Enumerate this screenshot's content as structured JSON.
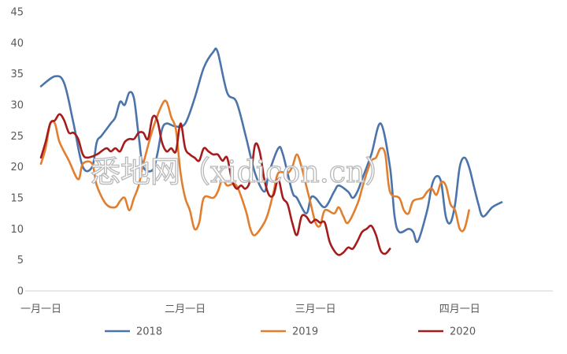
{
  "chart_data": {
    "type": "line",
    "title": "",
    "xlabel": "",
    "ylabel": "",
    "ylim": [
      0,
      45
    ],
    "yticks": [
      0,
      5,
      10,
      15,
      20,
      25,
      30,
      35,
      40,
      45
    ],
    "x_range": [
      0,
      110
    ],
    "xticks": [
      {
        "x": 0,
        "label": "一月一日"
      },
      {
        "x": 31,
        "label": "二月一日"
      },
      {
        "x": 59,
        "label": "三月一日"
      },
      {
        "x": 90,
        "label": "四月一日"
      }
    ],
    "grid": false,
    "legend": "bottom",
    "series": [
      {
        "name": "2018",
        "color": "#4a74aa",
        "points": [
          [
            0,
            33
          ],
          [
            3,
            34.6
          ],
          [
            5,
            33.5
          ],
          [
            7,
            27
          ],
          [
            9,
            20
          ],
          [
            11,
            20
          ],
          [
            12,
            24
          ],
          [
            13,
            25
          ],
          [
            15,
            27
          ],
          [
            16,
            28
          ],
          [
            17,
            30.5
          ],
          [
            18,
            30
          ],
          [
            19,
            32
          ],
          [
            20,
            31
          ],
          [
            21,
            25
          ],
          [
            22,
            20
          ],
          [
            24,
            19.5
          ],
          [
            25,
            22
          ],
          [
            26,
            26
          ],
          [
            27,
            27
          ],
          [
            29,
            26.5
          ],
          [
            31,
            27
          ],
          [
            33,
            31
          ],
          [
            35,
            36
          ],
          [
            37,
            38.5
          ],
          [
            38,
            38.5
          ],
          [
            40,
            32
          ],
          [
            42,
            30.5
          ],
          [
            44,
            25
          ],
          [
            46,
            19
          ],
          [
            48,
            16
          ],
          [
            49,
            19
          ],
          [
            51,
            23
          ],
          [
            52,
            22
          ],
          [
            54,
            16
          ],
          [
            55,
            15
          ],
          [
            57,
            12.5
          ],
          [
            58,
            15
          ],
          [
            59,
            15
          ],
          [
            61,
            13.5
          ],
          [
            63,
            16
          ],
          [
            64,
            17
          ],
          [
            66,
            16
          ],
          [
            67,
            15
          ],
          [
            68,
            16
          ],
          [
            69,
            18
          ],
          [
            71,
            22
          ],
          [
            73,
            27
          ],
          [
            75,
            20
          ],
          [
            76,
            12
          ],
          [
            77,
            9.5
          ],
          [
            79,
            10
          ],
          [
            80,
            9.5
          ],
          [
            81,
            8
          ],
          [
            83,
            13
          ],
          [
            84,
            17
          ],
          [
            85,
            18.5
          ],
          [
            86,
            17.5
          ],
          [
            87,
            12
          ],
          [
            88,
            11
          ],
          [
            89,
            14
          ],
          [
            90,
            20
          ],
          [
            91,
            21.5
          ],
          [
            92,
            20
          ],
          [
            93,
            17
          ],
          [
            94,
            14
          ],
          [
            95,
            12
          ],
          [
            97,
            13.5
          ],
          [
            99,
            14.3
          ]
        ]
      },
      {
        "name": "2019",
        "color": "#e27f2f",
        "points": [
          [
            0,
            20.5
          ],
          [
            1,
            23
          ],
          [
            2,
            27
          ],
          [
            3,
            27
          ],
          [
            4,
            24
          ],
          [
            6,
            21
          ],
          [
            8,
            18
          ],
          [
            9,
            20.5
          ],
          [
            11,
            20.5
          ],
          [
            12,
            17
          ],
          [
            14,
            14
          ],
          [
            16,
            13.5
          ],
          [
            17,
            14.5
          ],
          [
            18,
            15
          ],
          [
            19,
            13
          ],
          [
            20,
            15
          ],
          [
            21,
            17
          ],
          [
            22,
            20.5
          ],
          [
            24,
            26
          ],
          [
            26,
            30
          ],
          [
            27,
            30.5
          ],
          [
            28,
            28
          ],
          [
            29,
            26
          ],
          [
            30,
            19
          ],
          [
            31,
            15
          ],
          [
            32,
            13
          ],
          [
            33,
            10
          ],
          [
            34,
            11
          ],
          [
            35,
            15
          ],
          [
            37,
            15
          ],
          [
            38,
            16
          ],
          [
            39,
            18
          ],
          [
            40,
            17
          ],
          [
            42,
            17
          ],
          [
            44,
            13
          ],
          [
            45,
            10
          ],
          [
            46,
            9
          ],
          [
            48,
            11
          ],
          [
            49,
            13
          ],
          [
            50,
            16
          ],
          [
            51,
            19
          ],
          [
            53,
            19
          ],
          [
            54,
            20
          ],
          [
            55,
            22
          ],
          [
            56,
            20
          ],
          [
            57,
            17
          ],
          [
            58,
            14
          ],
          [
            59,
            11
          ],
          [
            60,
            10.5
          ],
          [
            61,
            13
          ],
          [
            63,
            12.5
          ],
          [
            64,
            13.5
          ],
          [
            65,
            12
          ],
          [
            66,
            11
          ],
          [
            68,
            14
          ],
          [
            69,
            16.5
          ],
          [
            70,
            19
          ],
          [
            71,
            21
          ],
          [
            72,
            21.5
          ],
          [
            73,
            23
          ],
          [
            74,
            22
          ],
          [
            75,
            16
          ],
          [
            77,
            15
          ],
          [
            78,
            13
          ],
          [
            79,
            12.5
          ],
          [
            80,
            14.5
          ],
          [
            82,
            15
          ],
          [
            83,
            16
          ],
          [
            84,
            16.5
          ],
          [
            85,
            15.5
          ],
          [
            86,
            17.5
          ],
          [
            87,
            17
          ],
          [
            88,
            14
          ],
          [
            89,
            13
          ],
          [
            90,
            10
          ],
          [
            91,
            10
          ],
          [
            92,
            13
          ]
        ]
      },
      {
        "name": "2020",
        "color": "#a51c1c",
        "points": [
          [
            0,
            21.5
          ],
          [
            1,
            24
          ],
          [
            2,
            27
          ],
          [
            3,
            27.5
          ],
          [
            4,
            28.5
          ],
          [
            5,
            27.5
          ],
          [
            6,
            25.5
          ],
          [
            7,
            25.5
          ],
          [
            8,
            24.5
          ],
          [
            9,
            22
          ],
          [
            10,
            21.5
          ],
          [
            12,
            22
          ],
          [
            14,
            23
          ],
          [
            15,
            22.5
          ],
          [
            16,
            23
          ],
          [
            17,
            22.5
          ],
          [
            18,
            24
          ],
          [
            19,
            24.5
          ],
          [
            20,
            24.5
          ],
          [
            21,
            25.5
          ],
          [
            22,
            25.5
          ],
          [
            23,
            24.5
          ],
          [
            24,
            28
          ],
          [
            25,
            27.5
          ],
          [
            26,
            24
          ],
          [
            27,
            22.5
          ],
          [
            28,
            23
          ],
          [
            29,
            22.5
          ],
          [
            30,
            27
          ],
          [
            31,
            23
          ],
          [
            32,
            22
          ],
          [
            33,
            21.5
          ],
          [
            34,
            21
          ],
          [
            35,
            23
          ],
          [
            36,
            22.5
          ],
          [
            37,
            22
          ],
          [
            38,
            22
          ],
          [
            39,
            21
          ],
          [
            40,
            21.5
          ],
          [
            41,
            18
          ],
          [
            42,
            16.5
          ],
          [
            43,
            17
          ],
          [
            44,
            16.5
          ],
          [
            45,
            18
          ],
          [
            46,
            23.5
          ],
          [
            47,
            22.5
          ],
          [
            48,
            18
          ],
          [
            49,
            15.5
          ],
          [
            50,
            15.5
          ],
          [
            51,
            18
          ],
          [
            52,
            15
          ],
          [
            53,
            14
          ],
          [
            54,
            11
          ],
          [
            55,
            9
          ],
          [
            56,
            12
          ],
          [
            57,
            12
          ],
          [
            58,
            11
          ],
          [
            59,
            11.5
          ],
          [
            60,
            11
          ],
          [
            61,
            11
          ],
          [
            62,
            8
          ],
          [
            63,
            6.5
          ],
          [
            64,
            5.8
          ],
          [
            65,
            6.2
          ],
          [
            66,
            7
          ],
          [
            67,
            6.8
          ],
          [
            68,
            8
          ],
          [
            69,
            9.5
          ],
          [
            70,
            10
          ],
          [
            71,
            10.5
          ],
          [
            72,
            9
          ],
          [
            73,
            6.5
          ],
          [
            74,
            6
          ],
          [
            75,
            6.8
          ]
        ]
      }
    ]
  }
}
